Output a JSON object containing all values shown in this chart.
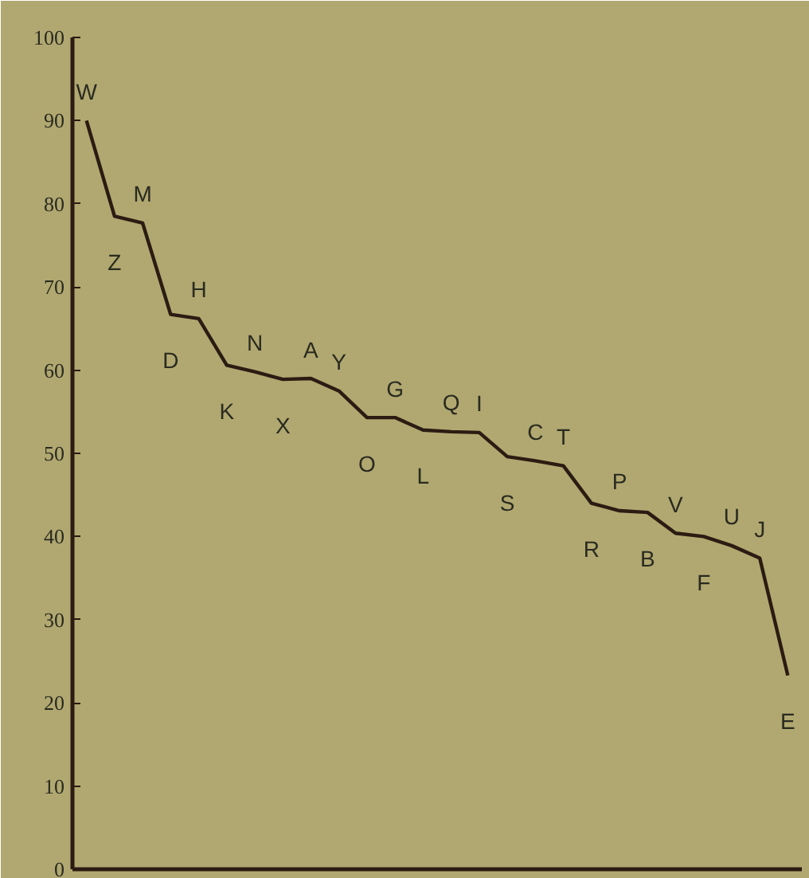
{
  "chart_data": {
    "type": "line",
    "categories": [
      "W",
      "Z",
      "M",
      "D",
      "H",
      "K",
      "N",
      "X",
      "A",
      "Y",
      "O",
      "G",
      "L",
      "Q",
      "I",
      "S",
      "C",
      "T",
      "R",
      "P",
      "B",
      "V",
      "F",
      "U",
      "J",
      "E"
    ],
    "values": [
      90,
      78.5,
      77.7,
      66.7,
      66.2,
      60.6,
      59.8,
      58.9,
      59.0,
      57.5,
      54.3,
      54.3,
      52.8,
      52.6,
      52.5,
      49.6,
      49.1,
      48.5,
      44.0,
      43.1,
      42.9,
      40.4,
      40.0,
      38.9,
      37.4,
      23.3
    ],
    "color": "#2a1c12",
    "ylim": [
      0,
      100
    ],
    "yticks": [
      0,
      10,
      20,
      30,
      40,
      50,
      60,
      70,
      80,
      90,
      100
    ],
    "grid": false,
    "marker": "none",
    "line_style": "solid"
  }
}
